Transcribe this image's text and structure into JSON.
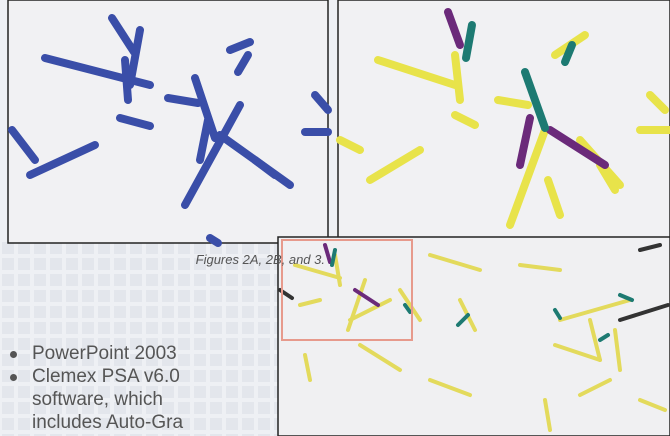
{
  "caption": "Figures 2A, 2B, and 3.",
  "bullets": [
    "PowerPoint 2003",
    "Clemex PSA v6.0 software, which includes Auto-Gra"
  ]
}
